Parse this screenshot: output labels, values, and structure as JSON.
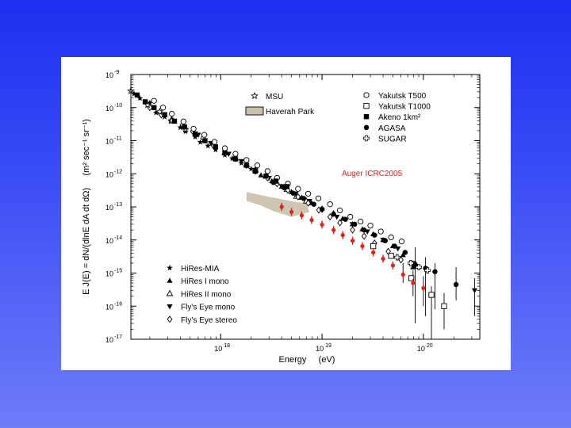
{
  "chart_data": {
    "type": "scatter",
    "xlabel": "Energy     (eV)",
    "ylabel": "E J(E) = dN/(dlnE dA dt dΩ)     (m² sec⁻¹ sr⁻¹)",
    "x_scale": "log",
    "y_scale": "log",
    "xlim_eV": [
      1.3e+17,
      3.6e+20
    ],
    "ylim": [
      1e-17,
      1e-09
    ],
    "x_ticks": [
      {
        "base": "10",
        "exp": "18",
        "value": 1e+18
      },
      {
        "base": "10",
        "exp": "19",
        "value": 1e+19
      },
      {
        "base": "10",
        "exp": "20",
        "value": 1e+20
      }
    ],
    "y_ticks": [
      {
        "base": "10",
        "exp": "-9",
        "value": 1e-09
      },
      {
        "base": "10",
        "exp": "-10",
        "value": 1e-10
      },
      {
        "base": "10",
        "exp": "-11",
        "value": 1e-11
      },
      {
        "base": "10",
        "exp": "-12",
        "value": 1e-12
      },
      {
        "base": "10",
        "exp": "-13",
        "value": 1e-13
      },
      {
        "base": "10",
        "exp": "-14",
        "value": 1e-14
      },
      {
        "base": "10",
        "exp": "-15",
        "value": 1e-15
      },
      {
        "base": "10",
        "exp": "-16",
        "value": 1e-16
      },
      {
        "base": "10",
        "exp": "-17",
        "value": 1e-17
      }
    ],
    "annotation": "Auger ICRC2005",
    "legend_right": [
      {
        "name": "Yakutsk T500",
        "marker": "circle-open"
      },
      {
        "name": "Yakutsk T1000",
        "marker": "square-open"
      },
      {
        "name": "Akeno 1km²",
        "marker": "square-filled"
      },
      {
        "name": "AGASA",
        "marker": "circle-filled"
      },
      {
        "name": "SUGAR",
        "marker": "cross-open"
      }
    ],
    "legend_middle": [
      {
        "name": "MSU",
        "marker": "star-open"
      },
      {
        "name": "Haverah Park",
        "marker": "band"
      }
    ],
    "legend_left": [
      {
        "name": "HiRes-MIA",
        "marker": "star-filled"
      },
      {
        "name": "HiRes I mono",
        "marker": "triangle-up-filled"
      },
      {
        "name": "HiRes II mono",
        "marker": "triangle-up-open"
      },
      {
        "name": "Fly’s Eye mono",
        "marker": "triangle-down-filled"
      },
      {
        "name": "Fly’s Eye stereo",
        "marker": "diamond-open"
      }
    ],
    "colors": {
      "auger": "#d9231f",
      "band": "#c9c0ab",
      "ink": "#000000"
    },
    "haverah_band": [
      [
        1.8e+18,
        2.8e-13
      ],
      [
        2.8e+18,
        2.1e-13
      ],
      [
        4e+18,
        1.7e-13
      ],
      [
        5.5e+18,
        1.4e-13
      ],
      [
        7e+18,
        1.3e-13
      ],
      [
        7.5e+18,
        7e-14
      ],
      [
        5e+18,
        5e-14
      ],
      [
        3.3e+18,
        7.5e-14
      ],
      [
        2.5e+18,
        1.1e-13
      ],
      [
        1.8e+18,
        1.5e-13
      ]
    ],
    "series": [
      {
        "name": "HiRes-MIA",
        "marker": "star-filled",
        "points": [
          [
            1.4e+17,
            2.6e-10
          ],
          [
            1.6e+17,
            1.9e-10
          ],
          [
            2e+17,
            1.4e-10
          ],
          [
            2.3e+17,
            7e-11
          ],
          [
            2.8e+17,
            5.2e-11
          ],
          [
            3.2e+17,
            3.9e-11
          ],
          [
            4e+17,
            2.5e-11
          ],
          [
            4.5e+17,
            1.9e-11
          ],
          [
            5.6e+17,
            1.3e-11
          ],
          [
            6.3e+17,
            9e-12
          ],
          [
            7.5e+17,
            7e-12
          ],
          [
            8.9e+17,
            5.3e-12
          ],
          [
            1.1e+18,
            3.7e-12
          ],
          [
            1.3e+18,
            2.9e-12
          ],
          [
            1.6e+18,
            2.1e-12
          ],
          [
            2e+18,
            1.4e-12
          ]
        ]
      },
      {
        "name": "HiRes I mono",
        "marker": "triangle-up-filled",
        "points": [
          [
            2.5e+18,
            9e-13
          ],
          [
            3.2e+18,
            6e-13
          ],
          [
            4e+18,
            4.1e-13
          ],
          [
            5e+18,
            2.8e-13
          ],
          [
            6.3e+18,
            1.9e-13
          ],
          [
            7.9e+18,
            1.3e-13
          ],
          [
            1e+19,
            9e-14
          ],
          [
            1.3e+19,
            6.5e-14
          ],
          [
            1.6e+19,
            4.4e-14
          ],
          [
            2e+19,
            3e-14
          ],
          [
            2.5e+19,
            2.1e-14
          ],
          [
            3.2e+19,
            1.5e-14
          ],
          [
            4e+19,
            1e-14
          ],
          [
            5e+19,
            6.5e-15
          ],
          [
            6.3e+19,
            3.5e-15
          ],
          [
            7.9e+19,
            1.5e-15
          ]
        ]
      },
      {
        "name": "HiRes II mono",
        "marker": "triangle-up-open",
        "points": [
          [
            1.1e+18,
            4.4e-12
          ],
          [
            1.4e+18,
            3e-12
          ],
          [
            1.8e+18,
            1.9e-12
          ],
          [
            2.2e+18,
            1.3e-12
          ],
          [
            2.8e+18,
            8.5e-13
          ],
          [
            3.5e+18,
            5.5e-13
          ],
          [
            4.5e+18,
            3.4e-13
          ],
          [
            5.6e+18,
            2.1e-13
          ],
          [
            7e+18,
            1.5e-13
          ]
        ]
      },
      {
        "name": "Fly’s Eye mono",
        "marker": "triangle-down-filled",
        "points": [
          [
            6e+17,
            1.5e-11
          ],
          [
            8e+17,
            8.5e-12
          ],
          [
            1.2e+18,
            4e-12
          ],
          [
            1.6e+18,
            2.4e-12
          ],
          [
            2.2e+18,
            1.3e-12
          ],
          [
            3e+18,
            7.5e-13
          ],
          [
            4e+18,
            4.2e-13
          ],
          [
            5.5e+18,
            2.5e-13
          ],
          [
            7.5e+18,
            1.5e-13
          ],
          [
            1e+19,
            8e-14
          ],
          [
            1.4e+19,
            5e-14
          ],
          [
            2e+19,
            3e-14
          ],
          [
            2.8e+19,
            1.8e-14
          ],
          [
            4e+19,
            1e-14
          ],
          [
            5.6e+19,
            5.5e-15
          ],
          [
            8e+19,
            2e-15
          ],
          [
            3.2e+20,
            3e-16
          ]
        ]
      },
      {
        "name": "Fly’s Eye stereo",
        "marker": "diamond-open",
        "points": [
          [
            2e+17,
            1e-10
          ],
          [
            2.6e+17,
            6e-11
          ],
          [
            3.3e+17,
            4.3e-11
          ],
          [
            4.2e+17,
            3e-11
          ],
          [
            5.3e+17,
            1.9e-11
          ],
          [
            6.7e+17,
            1.2e-11
          ],
          [
            8.5e+17,
            7e-12
          ],
          [
            1.1e+18,
            4.5e-12
          ],
          [
            1.4e+18,
            2.9e-12
          ],
          [
            1.8e+18,
            1.8e-12
          ],
          [
            2.2e+18,
            1.2e-12
          ],
          [
            2.9e+18,
            7.5e-13
          ],
          [
            3.6e+18,
            5e-13
          ],
          [
            4.6e+18,
            3.2e-13
          ],
          [
            5.8e+18,
            2e-13
          ],
          [
            7.3e+18,
            1.3e-13
          ],
          [
            9.3e+18,
            8e-14
          ],
          [
            1.2e+19,
            5e-14
          ],
          [
            1.5e+19,
            3.3e-14
          ],
          [
            2e+19,
            2e-14
          ],
          [
            2.6e+19,
            1.3e-14
          ],
          [
            3.3e+19,
            8e-15
          ],
          [
            4.5e+19,
            4.5e-15
          ],
          [
            6e+19,
            2.5e-15
          ]
        ]
      },
      {
        "name": "MSU",
        "marker": "star-open",
        "points": [
          [
            1.3e+17,
            3.2e-10
          ],
          [
            1.9e+17,
            1.2e-10
          ],
          [
            2.5e+17,
            7.5e-11
          ],
          [
            3.3e+17,
            4e-11
          ],
          [
            4.5e+17,
            2.2e-11
          ]
        ]
      },
      {
        "name": "Yakutsk T500",
        "marker": "circle-open",
        "points": [
          [
            2.2e+17,
            1.6e-10
          ],
          [
            2.7e+17,
            1e-10
          ],
          [
            3.3e+17,
            6.5e-11
          ],
          [
            4.3e+17,
            3.8e-11
          ],
          [
            5.4e+17,
            2.3e-11
          ],
          [
            6.9e+17,
            1.5e-11
          ],
          [
            8.7e+17,
            9.2e-12
          ],
          [
            1.1e+18,
            5.9e-12
          ],
          [
            1.4e+18,
            4e-12
          ],
          [
            1.8e+18,
            2.6e-12
          ],
          [
            2.3e+18,
            1.8e-12
          ],
          [
            2.9e+18,
            1.2e-12
          ],
          [
            3.6e+18,
            7.5e-13
          ],
          [
            4.6e+18,
            5e-13
          ],
          [
            5.8e+18,
            3.5e-13
          ],
          [
            7.3e+18,
            2.5e-13
          ],
          [
            9.2e+18,
            1.8e-13
          ],
          [
            1.2e+19,
            1.2e-13
          ],
          [
            1.5e+19,
            7.8e-14
          ],
          [
            1.9e+19,
            5e-14
          ],
          [
            2.4e+19,
            3.6e-14
          ],
          [
            3e+19,
            2.7e-14
          ],
          [
            3.8e+19,
            1.8e-14
          ],
          [
            4.8e+19,
            1.2e-14
          ],
          [
            6.1e+19,
            9e-15
          ]
        ]
      },
      {
        "name": "Yakutsk T1000",
        "marker": "square-open",
        "points": [
          [
            3.2e+19,
            6.5e-15
          ],
          [
            4.8e+19,
            3.3e-15
          ],
          [
            7.6e+19,
            7e-16
          ],
          [
            1.2e+20,
            2.2e-16
          ],
          [
            1.6e+20,
            1e-16
          ]
        ]
      },
      {
        "name": "Akeno 1km²",
        "marker": "square-filled",
        "points": [
          [
            1.5e+17,
            2.4e-10
          ],
          [
            1.8e+17,
            1.5e-10
          ],
          [
            2.2e+17,
            1e-10
          ],
          [
            2.8e+17,
            6.1e-11
          ],
          [
            3.5e+17,
            3.9e-11
          ],
          [
            4.4e+17,
            2.6e-11
          ],
          [
            5.6e+17,
            1.6e-11
          ],
          [
            7e+17,
            1e-11
          ],
          [
            8.9e+17,
            6.5e-12
          ],
          [
            1.1e+18,
            4.3e-12
          ],
          [
            1.4e+18,
            2.8e-12
          ],
          [
            1.8e+18,
            1.8e-12
          ],
          [
            2.2e+18,
            1.2e-12
          ],
          [
            2.8e+18,
            8.5e-13
          ],
          [
            3.5e+18,
            6e-13
          ],
          [
            4.5e+18,
            4.1e-13
          ]
        ]
      },
      {
        "name": "AGASA",
        "marker": "circle-filled",
        "points": [
          [
            3.3e+18,
            5.5e-13
          ],
          [
            4.2e+18,
            3.8e-13
          ],
          [
            5.2e+18,
            2.6e-13
          ],
          [
            6.6e+18,
            1.8e-13
          ],
          [
            8.3e+18,
            1.2e-13
          ],
          [
            1e+19,
            8.5e-14
          ],
          [
            1.3e+19,
            6e-14
          ],
          [
            1.7e+19,
            4.2e-14
          ],
          [
            2.1e+19,
            3e-14
          ],
          [
            2.6e+19,
            2e-14
          ],
          [
            3.3e+19,
            1.4e-14
          ],
          [
            4.2e+19,
            9.5e-15
          ],
          [
            5.2e+19,
            6.5e-15
          ],
          [
            6.6e+19,
            4.2e-15
          ],
          [
            8.3e+19,
            1.8e-15
          ],
          [
            1.05e+20,
            1.4e-15
          ],
          [
            1.3e+20,
            1.1e-15
          ],
          [
            2.1e+20,
            4.5e-16
          ]
        ]
      },
      {
        "name": "SUGAR",
        "marker": "cross-open",
        "points": [
          [
            5.5e+19,
            3e-15
          ],
          [
            7.5e+19,
            2e-15
          ],
          [
            9e+19,
            1.5e-15
          ],
          [
            1.1e+20,
            1.2e-15
          ]
        ]
      },
      {
        "name": "Auger ICRC2005",
        "marker": "circle-filled-red",
        "points": [
          [
            4e+18,
            1e-13
          ],
          [
            5e+18,
            7e-14
          ],
          [
            6.3e+18,
            5.5e-14
          ],
          [
            7.9e+18,
            4e-14
          ],
          [
            1e+19,
            2.9e-14
          ],
          [
            1.3e+19,
            2e-14
          ],
          [
            1.6e+19,
            1.4e-14
          ],
          [
            2e+19,
            9.5e-15
          ],
          [
            2.5e+19,
            6.5e-15
          ],
          [
            3.2e+19,
            4.2e-15
          ],
          [
            4e+19,
            2.7e-15
          ],
          [
            5e+19,
            1.7e-15
          ],
          [
            6.3e+19,
            9e-16
          ],
          [
            7.9e+19,
            5e-16
          ],
          [
            1e+20,
            3.5e-16
          ]
        ]
      }
    ],
    "error_bars": [
      {
        "x": 6.3e+19,
        "lo": 5e-16,
        "hi": 2e-15
      },
      {
        "x": 7.9e+19,
        "lo": 2e-16,
        "hi": 1.2e-15
      },
      {
        "x": 1e+20,
        "lo": 1e-16,
        "hi": 8e-16
      },
      {
        "x": 8.3e+19,
        "lo": 3e-17,
        "hi": 6e-15
      },
      {
        "x": 1.05e+20,
        "lo": 5e-17,
        "hi": 3e-15
      },
      {
        "x": 1.3e+20,
        "lo": 8e-17,
        "hi": 2e-15
      },
      {
        "x": 2.1e+20,
        "lo": 1.5e-16,
        "hi": 1.5e-15
      },
      {
        "x": 1.2e+20,
        "lo": 1e-17,
        "hi": 4e-16
      },
      {
        "x": 1.6e+20,
        "lo": 2e-17,
        "hi": 2.5e-16
      },
      {
        "x": 3.2e+20,
        "lo": 5e-17,
        "hi": 7e-16
      }
    ]
  }
}
